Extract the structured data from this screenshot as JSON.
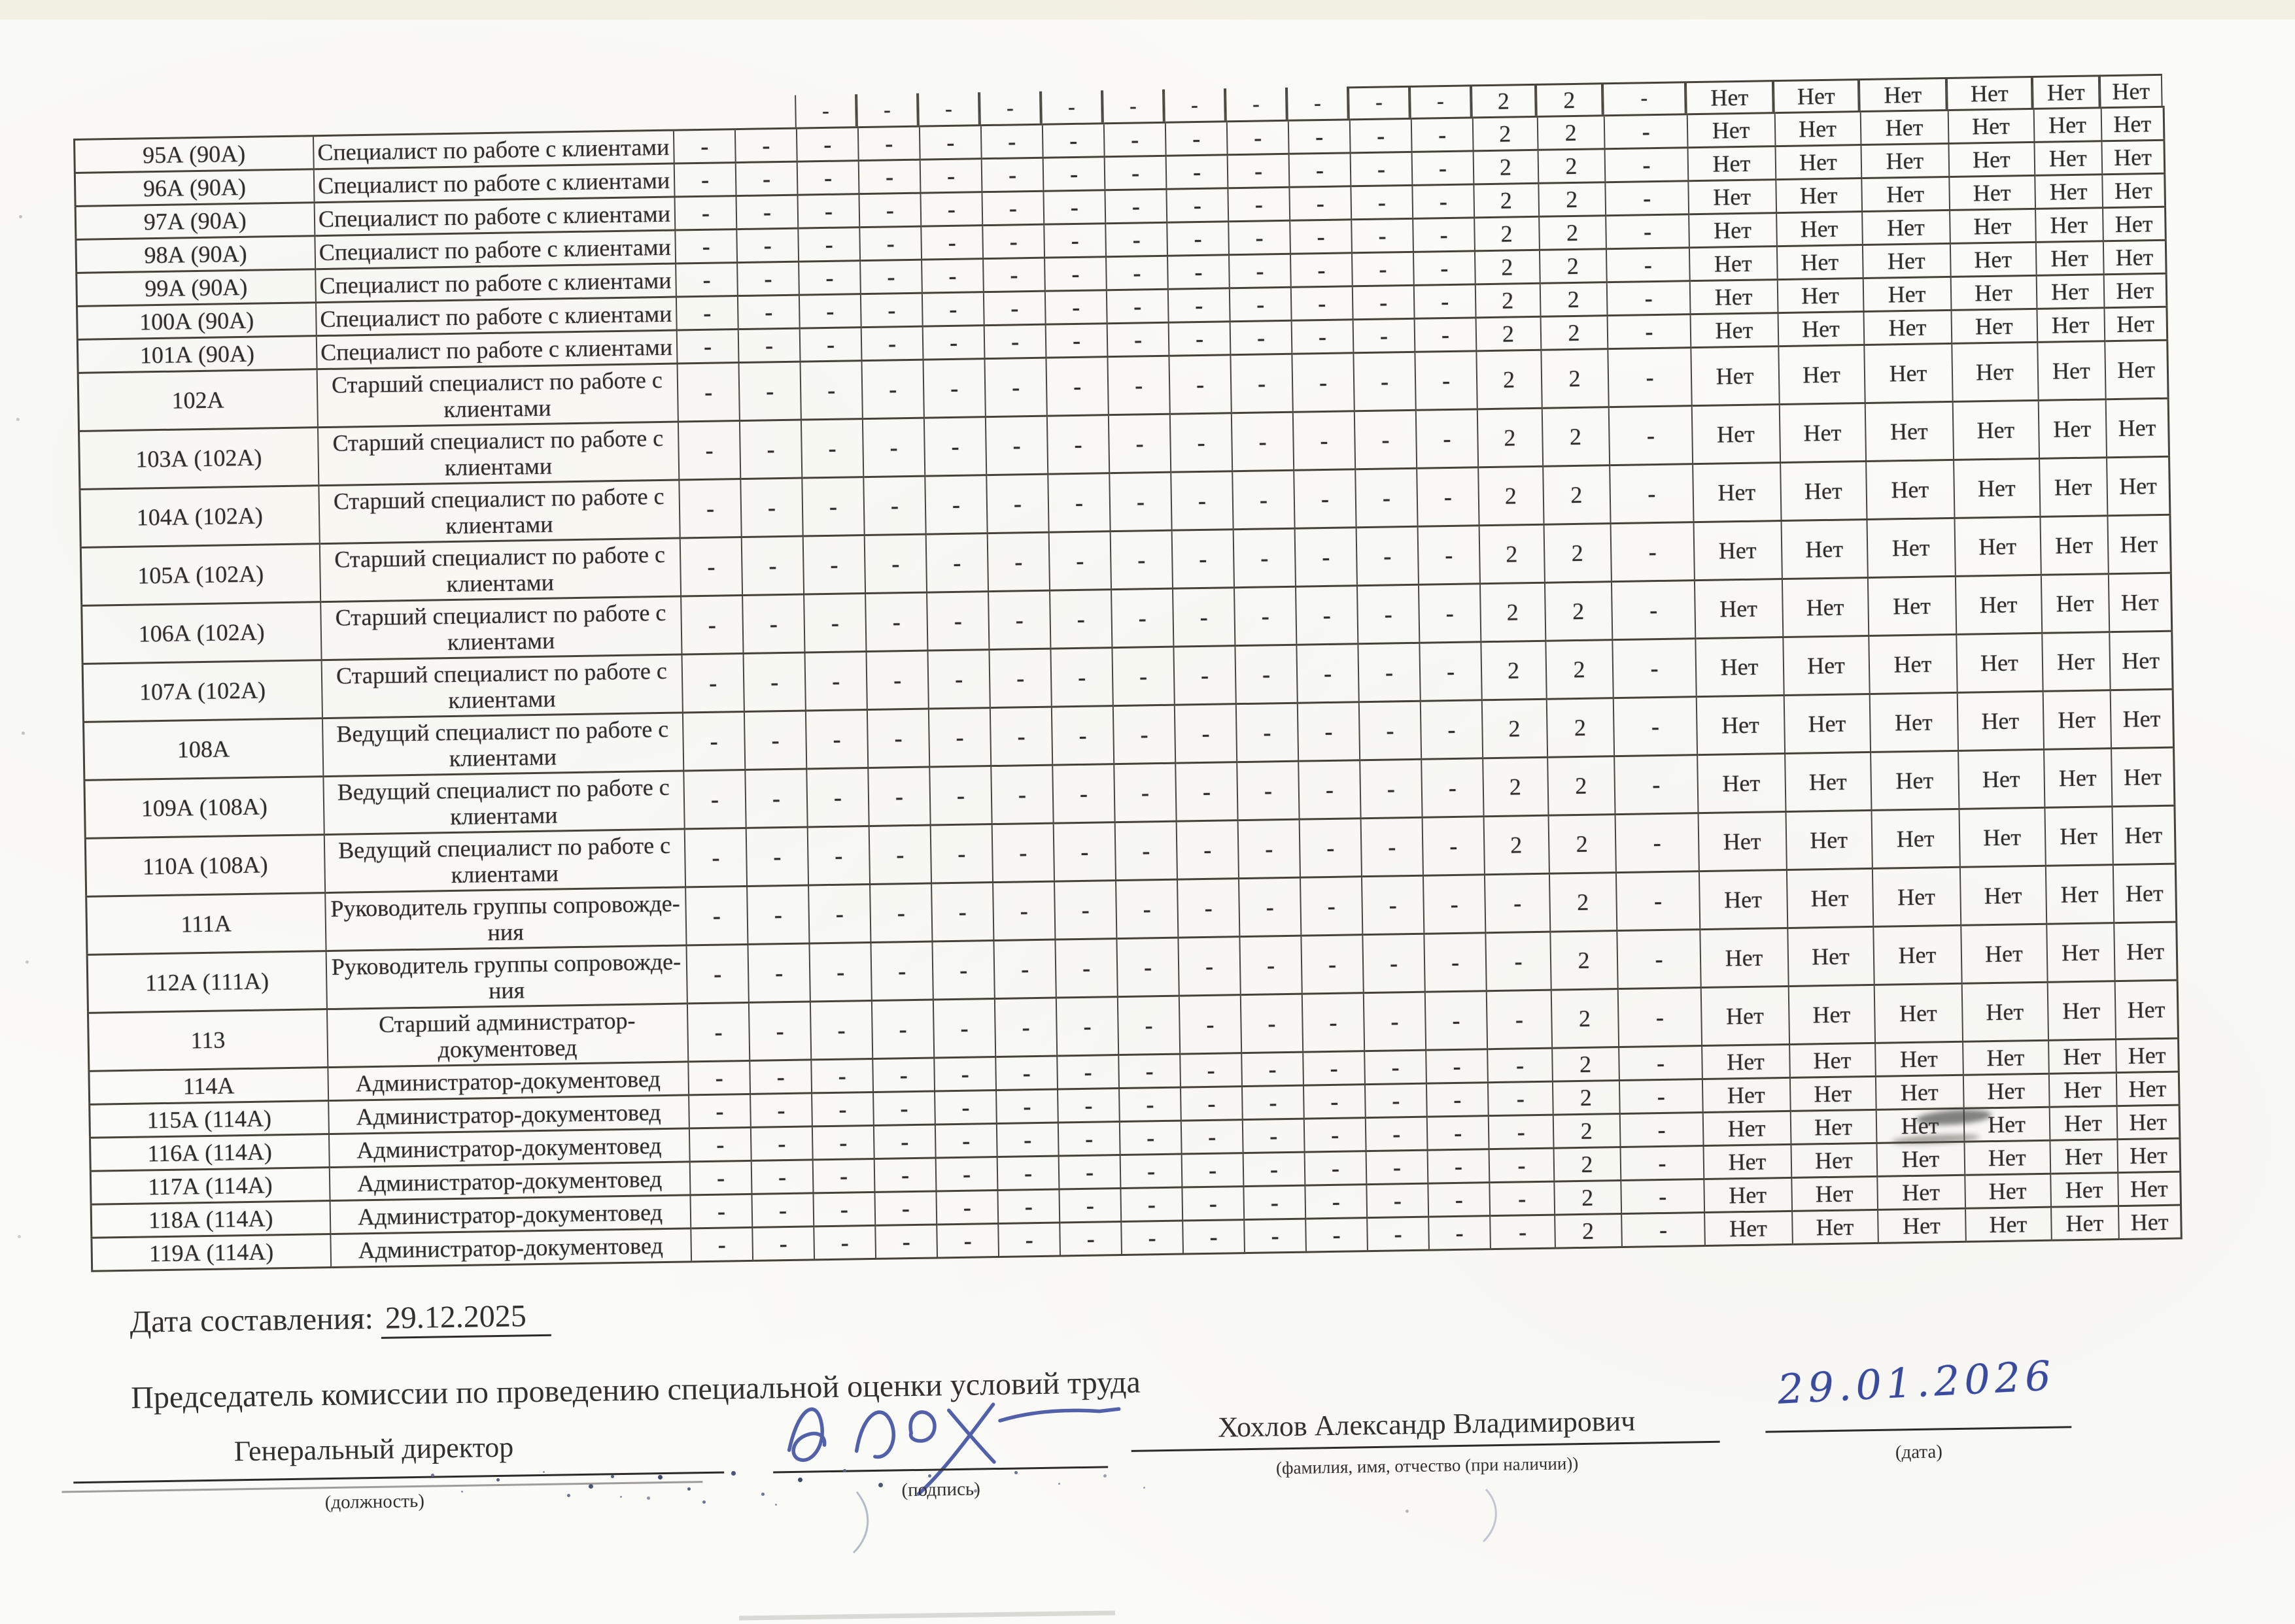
{
  "table": {
    "partial_row": {
      "cells": [
        "",
        "",
        "-",
        "-",
        "-",
        "-",
        "-",
        "-",
        "-",
        "-",
        "-",
        "-",
        "-",
        "2",
        "2",
        "-",
        "Нет",
        "Нет",
        "Нет",
        "Нет",
        "Нет",
        "Нет"
      ]
    },
    "rows": [
      {
        "num": "95А (90А)",
        "title_lines": [
          "Специалист по работе с клиентами"
        ],
        "cells": [
          "-",
          "-",
          "-",
          "-",
          "-",
          "-",
          "-",
          "-",
          "-",
          "-",
          "-",
          "-",
          "-",
          "2",
          "2",
          "-",
          "Нет",
          "Нет",
          "Нет",
          "Нет",
          "Нет",
          "Нет"
        ]
      },
      {
        "num": "96А (90А)",
        "title_lines": [
          "Специалист по работе с клиентами"
        ],
        "cells": [
          "-",
          "-",
          "-",
          "-",
          "-",
          "-",
          "-",
          "-",
          "-",
          "-",
          "-",
          "-",
          "-",
          "2",
          "2",
          "-",
          "Нет",
          "Нет",
          "Нет",
          "Нет",
          "Нет",
          "Нет"
        ]
      },
      {
        "num": "97А (90А)",
        "title_lines": [
          "Специалист по работе с клиентами"
        ],
        "cells": [
          "-",
          "-",
          "-",
          "-",
          "-",
          "-",
          "-",
          "-",
          "-",
          "-",
          "-",
          "-",
          "-",
          "2",
          "2",
          "-",
          "Нет",
          "Нет",
          "Нет",
          "Нет",
          "Нет",
          "Нет"
        ]
      },
      {
        "num": "98А (90А)",
        "title_lines": [
          "Специалист по работе с клиентами"
        ],
        "cells": [
          "-",
          "-",
          "-",
          "-",
          "-",
          "-",
          "-",
          "-",
          "-",
          "-",
          "-",
          "-",
          "-",
          "2",
          "2",
          "-",
          "Нет",
          "Нет",
          "Нет",
          "Нет",
          "Нет",
          "Нет"
        ]
      },
      {
        "num": "99А (90А)",
        "title_lines": [
          "Специалист по работе с клиентами"
        ],
        "cells": [
          "-",
          "-",
          "-",
          "-",
          "-",
          "-",
          "-",
          "-",
          "-",
          "-",
          "-",
          "-",
          "-",
          "2",
          "2",
          "-",
          "Нет",
          "Нет",
          "Нет",
          "Нет",
          "Нет",
          "Нет"
        ]
      },
      {
        "num": "100А (90А)",
        "title_lines": [
          "Специалист по работе с клиентами"
        ],
        "cells": [
          "-",
          "-",
          "-",
          "-",
          "-",
          "-",
          "-",
          "-",
          "-",
          "-",
          "-",
          "-",
          "-",
          "2",
          "2",
          "-",
          "Нет",
          "Нет",
          "Нет",
          "Нет",
          "Нет",
          "Нет"
        ]
      },
      {
        "num": "101А (90А)",
        "title_lines": [
          "Специалист по работе с клиентами"
        ],
        "cells": [
          "-",
          "-",
          "-",
          "-",
          "-",
          "-",
          "-",
          "-",
          "-",
          "-",
          "-",
          "-",
          "-",
          "2",
          "2",
          "-",
          "Нет",
          "Нет",
          "Нет",
          "Нет",
          "Нет",
          "Нет"
        ]
      },
      {
        "num": "102А",
        "title_lines": [
          "Старший специалист по работе с",
          "клиентами"
        ],
        "cells": [
          "-",
          "-",
          "-",
          "-",
          "-",
          "-",
          "-",
          "-",
          "-",
          "-",
          "-",
          "-",
          "-",
          "2",
          "2",
          "-",
          "Нет",
          "Нет",
          "Нет",
          "Нет",
          "Нет",
          "Нет"
        ]
      },
      {
        "num": "103А (102А)",
        "title_lines": [
          "Старший специалист по работе с",
          "клиентами"
        ],
        "cells": [
          "-",
          "-",
          "-",
          "-",
          "-",
          "-",
          "-",
          "-",
          "-",
          "-",
          "-",
          "-",
          "-",
          "2",
          "2",
          "-",
          "Нет",
          "Нет",
          "Нет",
          "Нет",
          "Нет",
          "Нет"
        ]
      },
      {
        "num": "104А (102А)",
        "title_lines": [
          "Старший специалист по работе с",
          "клиентами"
        ],
        "cells": [
          "-",
          "-",
          "-",
          "-",
          "-",
          "-",
          "-",
          "-",
          "-",
          "-",
          "-",
          "-",
          "-",
          "2",
          "2",
          "-",
          "Нет",
          "Нет",
          "Нет",
          "Нет",
          "Нет",
          "Нет"
        ]
      },
      {
        "num": "105А (102А)",
        "title_lines": [
          "Старший специалист по работе с",
          "клиентами"
        ],
        "cells": [
          "-",
          "-",
          "-",
          "-",
          "-",
          "-",
          "-",
          "-",
          "-",
          "-",
          "-",
          "-",
          "-",
          "2",
          "2",
          "-",
          "Нет",
          "Нет",
          "Нет",
          "Нет",
          "Нет",
          "Нет"
        ]
      },
      {
        "num": "106А (102А)",
        "title_lines": [
          "Старший специалист по работе с",
          "клиентами"
        ],
        "cells": [
          "-",
          "-",
          "-",
          "-",
          "-",
          "-",
          "-",
          "-",
          "-",
          "-",
          "-",
          "-",
          "-",
          "2",
          "2",
          "-",
          "Нет",
          "Нет",
          "Нет",
          "Нет",
          "Нет",
          "Нет"
        ]
      },
      {
        "num": "107А (102А)",
        "title_lines": [
          "Старший специалист по работе с",
          "клиентами"
        ],
        "cells": [
          "-",
          "-",
          "-",
          "-",
          "-",
          "-",
          "-",
          "-",
          "-",
          "-",
          "-",
          "-",
          "-",
          "2",
          "2",
          "-",
          "Нет",
          "Нет",
          "Нет",
          "Нет",
          "Нет",
          "Нет"
        ]
      },
      {
        "num": "108А",
        "title_lines": [
          "Ведущий специалист по работе с",
          "клиентами"
        ],
        "cells": [
          "-",
          "-",
          "-",
          "-",
          "-",
          "-",
          "-",
          "-",
          "-",
          "-",
          "-",
          "-",
          "-",
          "2",
          "2",
          "-",
          "Нет",
          "Нет",
          "Нет",
          "Нет",
          "Нет",
          "Нет"
        ]
      },
      {
        "num": "109А (108А)",
        "title_lines": [
          "Ведущий специалист по работе с",
          "клиентами"
        ],
        "cells": [
          "-",
          "-",
          "-",
          "-",
          "-",
          "-",
          "-",
          "-",
          "-",
          "-",
          "-",
          "-",
          "-",
          "2",
          "2",
          "-",
          "Нет",
          "Нет",
          "Нет",
          "Нет",
          "Нет",
          "Нет"
        ]
      },
      {
        "num": "110А (108А)",
        "title_lines": [
          "Ведущий специалист по работе с",
          "клиентами"
        ],
        "cells": [
          "-",
          "-",
          "-",
          "-",
          "-",
          "-",
          "-",
          "-",
          "-",
          "-",
          "-",
          "-",
          "-",
          "2",
          "2",
          "-",
          "Нет",
          "Нет",
          "Нет",
          "Нет",
          "Нет",
          "Нет"
        ]
      },
      {
        "num": "111А",
        "title_lines": [
          "Руководитель группы сопровожде-",
          "ния"
        ],
        "cells": [
          "-",
          "-",
          "-",
          "-",
          "-",
          "-",
          "-",
          "-",
          "-",
          "-",
          "-",
          "-",
          "-",
          "-",
          "2",
          "-",
          "Нет",
          "Нет",
          "Нет",
          "Нет",
          "Нет",
          "Нет"
        ]
      },
      {
        "num": "112А (111А)",
        "title_lines": [
          "Руководитель группы сопровожде-",
          "ния"
        ],
        "cells": [
          "-",
          "-",
          "-",
          "-",
          "-",
          "-",
          "-",
          "-",
          "-",
          "-",
          "-",
          "-",
          "-",
          "-",
          "2",
          "-",
          "Нет",
          "Нет",
          "Нет",
          "Нет",
          "Нет",
          "Нет"
        ]
      },
      {
        "num": "113",
        "title_lines": [
          "Старший администратор-",
          "документовед"
        ],
        "cells": [
          "-",
          "-",
          "-",
          "-",
          "-",
          "-",
          "-",
          "-",
          "-",
          "-",
          "-",
          "-",
          "-",
          "-",
          "2",
          "-",
          "Нет",
          "Нет",
          "Нет",
          "Нет",
          "Нет",
          "Нет"
        ]
      },
      {
        "num": "114А",
        "title_lines": [
          "Администратор-документовед"
        ],
        "cells": [
          "-",
          "-",
          "-",
          "-",
          "-",
          "-",
          "-",
          "-",
          "-",
          "-",
          "-",
          "-",
          "-",
          "-",
          "2",
          "-",
          "Нет",
          "Нет",
          "Нет",
          "Нет",
          "Нет",
          "Нет"
        ]
      },
      {
        "num": "115А (114А)",
        "title_lines": [
          "Администратор-документовед"
        ],
        "cells": [
          "-",
          "-",
          "-",
          "-",
          "-",
          "-",
          "-",
          "-",
          "-",
          "-",
          "-",
          "-",
          "-",
          "-",
          "2",
          "-",
          "Нет",
          "Нет",
          "Нет",
          "Нет",
          "Нет",
          "Нет"
        ]
      },
      {
        "num": "116А (114А)",
        "title_lines": [
          "Администратор-документовед"
        ],
        "cells": [
          "-",
          "-",
          "-",
          "-",
          "-",
          "-",
          "-",
          "-",
          "-",
          "-",
          "-",
          "-",
          "-",
          "-",
          "2",
          "-",
          "Нет",
          "Нет",
          "Нет",
          "Нет",
          "Нет",
          "Нет"
        ]
      },
      {
        "num": "117А (114А)",
        "title_lines": [
          "Администратор-документовед"
        ],
        "cells": [
          "-",
          "-",
          "-",
          "-",
          "-",
          "-",
          "-",
          "-",
          "-",
          "-",
          "-",
          "-",
          "-",
          "-",
          "2",
          "-",
          "Нет",
          "Нет",
          "Нет",
          "Нет",
          "Нет",
          "Нет"
        ]
      },
      {
        "num": "118А (114А)",
        "title_lines": [
          "Администратор-документовед"
        ],
        "cells": [
          "-",
          "-",
          "-",
          "-",
          "-",
          "-",
          "-",
          "-",
          "-",
          "-",
          "-",
          "-",
          "-",
          "-",
          "2",
          "-",
          "Нет",
          "Нет",
          "Нет",
          "Нет",
          "Нет",
          "Нет"
        ]
      },
      {
        "num": "119А (114А)",
        "title_lines": [
          "Администратор-документовед"
        ],
        "cells": [
          "-",
          "-",
          "-",
          "-",
          "-",
          "-",
          "-",
          "-",
          "-",
          "-",
          "-",
          "-",
          "-",
          "-",
          "2",
          "-",
          "Нет",
          "Нет",
          "Нет",
          "Нет",
          "Нет",
          "Нет"
        ]
      }
    ]
  },
  "footer": {
    "date_label": "Дата составления:",
    "date_value": "29.12.2025",
    "chairman_title": "Председатель комиссии по проведению специальной оценки условий труда",
    "position_value": "Генеральный директор",
    "position_caption": "(должность)",
    "signature_caption": "(подпись)",
    "name_value": "Хохлов Александр Владимирович",
    "name_caption": "(фамилия, имя, отчество (при наличии))",
    "handwritten_date": "29.01.2026",
    "date_caption": "(дата)"
  }
}
